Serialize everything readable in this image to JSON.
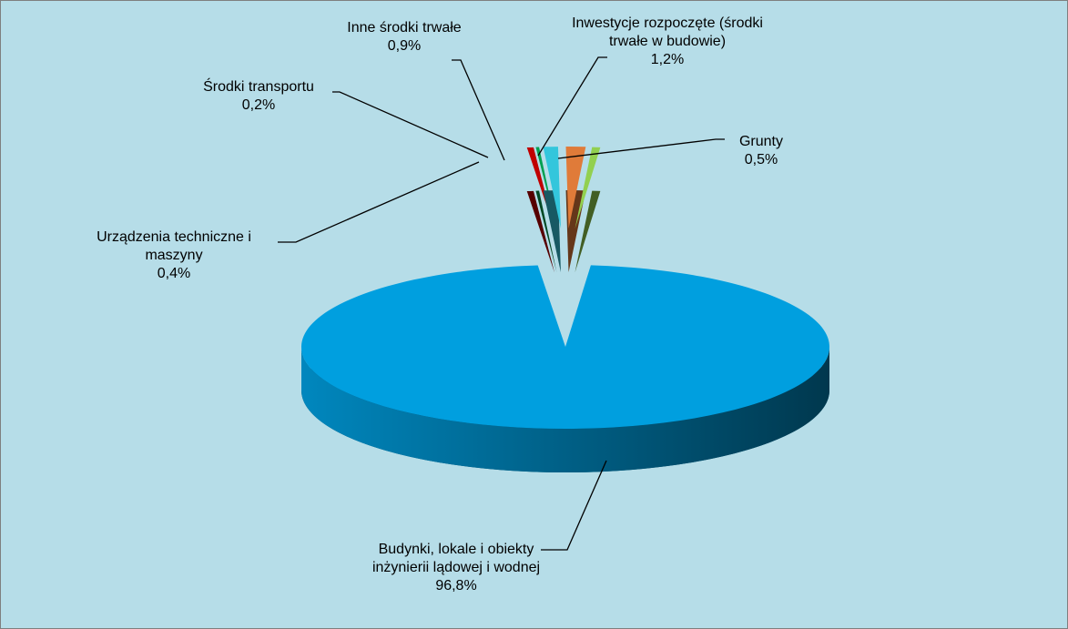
{
  "chart_data": {
    "type": "pie",
    "categories": [
      "Budynki, lokale i obiekty inżynierii lądowej i wodnej",
      "Grunty",
      "Inwestycje rozpoczęte (środki trwałe w budowie)",
      "Inne środki trwałe",
      "Środki transportu",
      "Urządzenia techniczne i maszyny"
    ],
    "values": [
      96.8,
      0.5,
      1.2,
      0.9,
      0.2,
      0.4
    ],
    "value_labels": [
      "96,8%",
      "0,5%",
      "1,2%",
      "0,9%",
      "0,2%",
      "0,4%"
    ],
    "colors": [
      "#009fdf",
      "#92d050",
      "#e07b39",
      "#33c6dc",
      "#00a050",
      "#c00000"
    ]
  }
}
